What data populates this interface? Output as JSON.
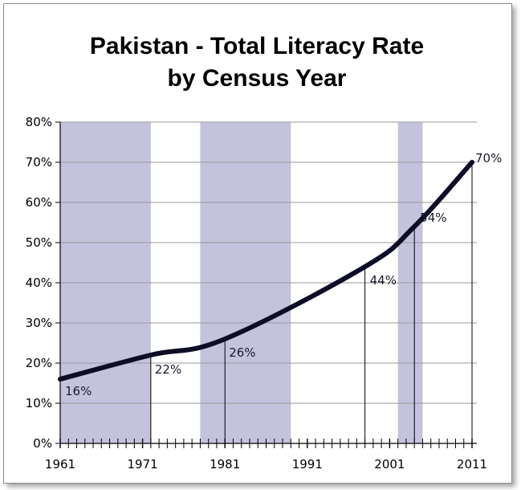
{
  "chart_data": {
    "type": "line",
    "title_line1": "Pakistan - Total Literacy Rate",
    "title_line2": "by Census Year",
    "xlabel": "",
    "ylabel": "",
    "x": [
      1961,
      1972,
      1981,
      1998,
      2004,
      2011
    ],
    "values": [
      16,
      22,
      26,
      44,
      54,
      70
    ],
    "data_labels": [
      "16%",
      "22%",
      "26%",
      "44%",
      "54%",
      "70%"
    ],
    "ylim": [
      0,
      80
    ],
    "xlim": [
      1961,
      2011
    ],
    "y_ticks": [
      0,
      10,
      20,
      30,
      40,
      50,
      60,
      70,
      80
    ],
    "y_tick_labels": [
      "0%",
      "10%",
      "20%",
      "30%",
      "40%",
      "50%",
      "60%",
      "70%",
      "80%"
    ],
    "x_ticks": [
      1961,
      1971,
      1981,
      1991,
      2001,
      2011
    ],
    "x_tick_labels": [
      "1961",
      "1971",
      "1981",
      "1991",
      "2001",
      "2011"
    ],
    "shaded_ranges": [
      [
        1961,
        1972
      ],
      [
        1978,
        1989
      ],
      [
        2002,
        2005
      ]
    ],
    "grid": true,
    "colors": {
      "line": "#0d0d26",
      "shade": "#c3c3de",
      "grid": "#9a9a9a"
    }
  }
}
